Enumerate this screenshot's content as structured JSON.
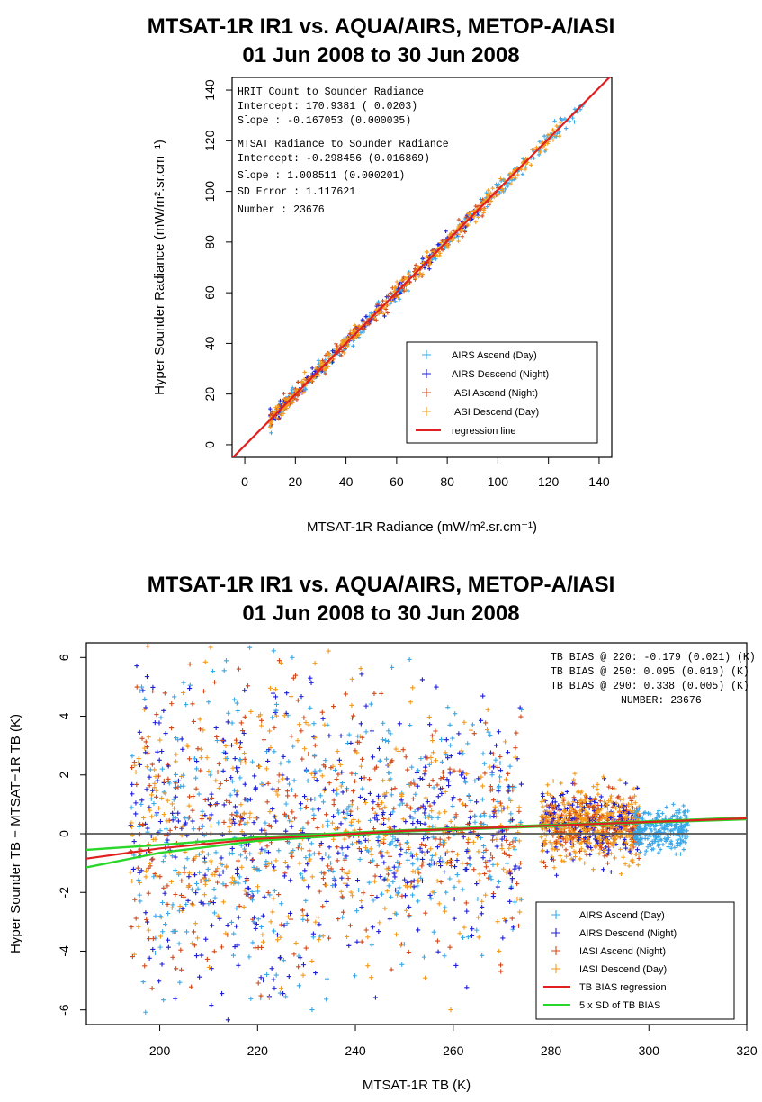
{
  "chart_data": [
    {
      "type": "scatter",
      "title": "MTSAT-1R IR1 vs. AQUA/AIRS, METOP-A/IASI",
      "subtitle": "01 Jun 2008 to 30 Jun 2008",
      "xlabel": "MTSAT-1R Radiance (mW/m².sr.cm⁻¹)",
      "ylabel": "Hyper Sounder Radiance (mW/m².sr.cm⁻¹)",
      "xlim": [
        -5,
        145
      ],
      "ylim": [
        -5,
        145
      ],
      "xticks": [
        0,
        20,
        40,
        60,
        80,
        100,
        120,
        140
      ],
      "yticks": [
        0,
        20,
        40,
        60,
        80,
        100,
        120,
        140
      ],
      "grid": false,
      "legend_position": "bottom-right",
      "annotations": [
        "HRIT Count to Sounder Radiance",
        "Intercept:  170.9381 (  0.0203)",
        "Slope     : -0.167053 (0.000035)",
        "MTSAT Radiance to Sounder Radiance",
        "Intercept: -0.298456 (0.016869)",
        "Slope     :  1.008511 (0.000201)",
        "SD Error :  1.117621",
        "Number    :    23676"
      ],
      "series": [
        {
          "name": "AIRS Ascend (Day)",
          "color": "#3aa8e8",
          "marker": "+",
          "x_range": [
            10,
            134
          ],
          "y_fit": {
            "intercept": -0.298456,
            "slope": 1.008511
          }
        },
        {
          "name": "AIRS Descend (Night)",
          "color": "#1f1fd6",
          "marker": "+",
          "x_range": [
            10,
            95
          ],
          "y_fit": {
            "intercept": -0.298456,
            "slope": 1.008511
          }
        },
        {
          "name": "IASI Ascend (Night)",
          "color": "#d2491b",
          "marker": "+",
          "x_range": [
            10,
            100
          ],
          "y_fit": {
            "intercept": -0.298456,
            "slope": 1.008511
          }
        },
        {
          "name": "IASI Descend (Day)",
          "color": "#f39a1e",
          "marker": "+",
          "x_range": [
            10,
            125
          ],
          "y_fit": {
            "intercept": -0.298456,
            "slope": 1.008511
          }
        },
        {
          "name": "regression line",
          "color": "#e02020",
          "type": "line",
          "x": [
            -5,
            145
          ],
          "y": [
            -5.34,
            145.94
          ]
        }
      ]
    },
    {
      "type": "scatter",
      "title": "MTSAT-1R IR1 vs. AQUA/AIRS, METOP-A/IASI",
      "subtitle": "01 Jun 2008 to 30 Jun 2008",
      "xlabel": "MTSAT-1R TB (K)",
      "ylabel": "Hyper Sounder TB − MTSAT−1R TB (K)",
      "xlim": [
        185,
        320
      ],
      "ylim": [
        -6.5,
        6.5
      ],
      "xticks": [
        200,
        220,
        240,
        260,
        280,
        300,
        320
      ],
      "yticks": [
        -6,
        -4,
        -2,
        0,
        2,
        4,
        6
      ],
      "grid": false,
      "legend_position": "bottom-right",
      "annotations": [
        "TB BIAS @ 220:  -0.179 (0.021) (K)",
        "TB BIAS @ 250:   0.095 (0.010) (K)",
        "TB BIAS @ 290:   0.338 (0.005) (K)",
        "NUMBER:    23676"
      ],
      "series": [
        {
          "name": "AIRS Ascend (Day)",
          "color": "#3aa8e8",
          "marker": "+",
          "x_range": [
            192,
            308
          ]
        },
        {
          "name": "AIRS Descend (Night)",
          "color": "#1f1fd6",
          "marker": "+",
          "x_range": [
            192,
            298
          ]
        },
        {
          "name": "IASI Ascend (Night)",
          "color": "#d2491b",
          "marker": "+",
          "x_range": [
            192,
            296
          ]
        },
        {
          "name": "IASI Descend (Day)",
          "color": "#f39a1e",
          "marker": "+",
          "x_range": [
            192,
            300
          ]
        },
        {
          "name": "TB BIAS regression",
          "color": "#e02020",
          "type": "line",
          "x": [
            185,
            200,
            220,
            250,
            290,
            320
          ],
          "y": [
            -0.85,
            -0.5,
            -0.179,
            0.095,
            0.338,
            0.52
          ]
        },
        {
          "name": "5 x SD of TB BIAS",
          "color": "#2ad62a",
          "type": "band",
          "x": [
            185,
            200,
            220,
            250,
            290,
            320
          ],
          "upper": [
            -0.55,
            -0.38,
            -0.12,
            0.12,
            0.36,
            0.55
          ],
          "lower": [
            -1.15,
            -0.65,
            -0.24,
            0.07,
            0.32,
            0.49
          ]
        }
      ]
    }
  ]
}
